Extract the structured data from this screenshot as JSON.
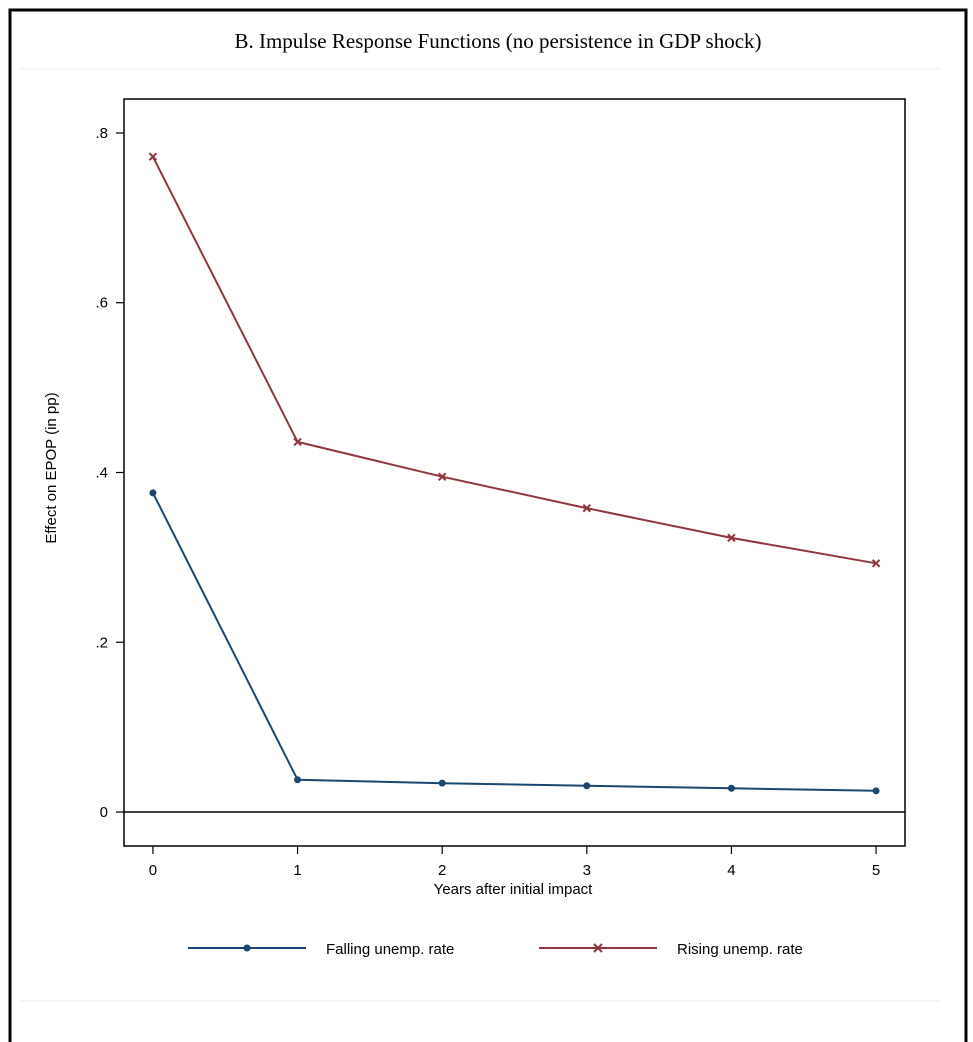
{
  "chart_data": {
    "type": "line",
    "title": "B. Impulse Response Functions (no persistence in GDP shock)",
    "xlabel": "Years after initial impact",
    "ylabel": "Effect on EPOP (in pp)",
    "x": [
      0,
      1,
      2,
      3,
      4,
      5
    ],
    "x_ticks": [
      "0",
      "1",
      "2",
      "3",
      "4",
      "5"
    ],
    "xlim": [
      -0.2,
      5.2
    ],
    "y_ticks": [
      "0",
      ".2",
      ".4",
      ".6",
      ".8"
    ],
    "y_tick_values": [
      0,
      0.2,
      0.4,
      0.6,
      0.8
    ],
    "ylim": [
      -0.04,
      0.84
    ],
    "reference_line_y": 0,
    "grid": false,
    "legend_position": "bottom",
    "series": [
      {
        "name": "Falling unemp. rate",
        "values": [
          0.376,
          0.038,
          0.034,
          0.031,
          0.028,
          0.025
        ],
        "color": "#1a476f",
        "marker": "circle"
      },
      {
        "name": "Rising unemp. rate",
        "values": [
          0.772,
          0.436,
          0.395,
          0.358,
          0.323,
          0.293
        ],
        "color": "#90353b",
        "marker": "x"
      }
    ]
  }
}
